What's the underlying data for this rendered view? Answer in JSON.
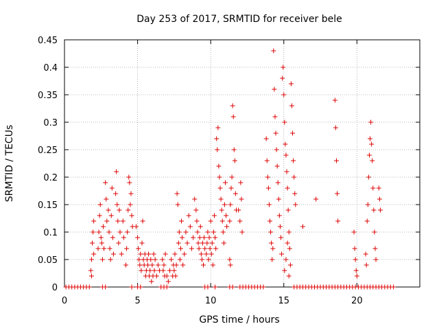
{
  "chart_data": {
    "type": "scatter",
    "title": "Day 253 of 2017, SRMTID for receiver bele",
    "xlabel": "GPS time / hours",
    "ylabel": "SRMTID / TECUs",
    "xlim": [
      0,
      24.3
    ],
    "ylim": [
      0,
      0.45
    ],
    "grid": true,
    "marker": "+",
    "marker_color": "#dd0000",
    "x_ticks": [
      0,
      5,
      10,
      15,
      20
    ],
    "x_tick_labels": [
      "0",
      "5",
      "10",
      "15",
      "20"
    ],
    "y_ticks": [
      0,
      0.05,
      0.1,
      0.15,
      0.2,
      0.25,
      0.3,
      0.35,
      0.4,
      0.45
    ],
    "y_tick_labels": [
      "0",
      "0.05",
      "0.1",
      "0.15",
      "0.2",
      "0.25",
      "0.3",
      "0.35",
      "0.4",
      "0.45"
    ],
    "series": [
      {
        "name": "SRMTID",
        "points": [
          [
            0.1,
            0
          ],
          [
            0.3,
            0
          ],
          [
            0.5,
            0
          ],
          [
            0.7,
            0
          ],
          [
            0.9,
            0
          ],
          [
            1.1,
            0
          ],
          [
            1.3,
            0
          ],
          [
            1.5,
            0
          ],
          [
            1.7,
            0
          ],
          [
            2.6,
            0
          ],
          [
            2.8,
            0
          ],
          [
            4.6,
            0
          ],
          [
            5.0,
            0
          ],
          [
            5.2,
            0
          ],
          [
            6.6,
            0
          ],
          [
            6.8,
            0
          ],
          [
            7.0,
            0
          ],
          [
            9.6,
            0
          ],
          [
            9.8,
            0
          ],
          [
            10.3,
            0
          ],
          [
            11.3,
            0
          ],
          [
            11.5,
            0
          ],
          [
            12.0,
            0
          ],
          [
            12.2,
            0
          ],
          [
            12.4,
            0
          ],
          [
            12.6,
            0
          ],
          [
            12.8,
            0
          ],
          [
            13.0,
            0
          ],
          [
            13.2,
            0
          ],
          [
            13.4,
            0
          ],
          [
            13.6,
            0
          ],
          [
            15.7,
            0
          ],
          [
            15.9,
            0
          ],
          [
            16.1,
            0
          ],
          [
            16.3,
            0
          ],
          [
            16.5,
            0
          ],
          [
            16.7,
            0
          ],
          [
            16.9,
            0
          ],
          [
            17.1,
            0
          ],
          [
            17.3,
            0
          ],
          [
            17.5,
            0
          ],
          [
            17.7,
            0
          ],
          [
            17.9,
            0
          ],
          [
            18.1,
            0
          ],
          [
            18.3,
            0
          ],
          [
            18.5,
            0
          ],
          [
            18.7,
            0
          ],
          [
            18.9,
            0
          ],
          [
            19.1,
            0
          ],
          [
            19.3,
            0
          ],
          [
            19.5,
            0
          ],
          [
            19.7,
            0
          ],
          [
            19.9,
            0
          ],
          [
            20.1,
            0
          ],
          [
            20.3,
            0
          ],
          [
            20.5,
            0
          ],
          [
            20.7,
            0
          ],
          [
            20.9,
            0
          ],
          [
            21.1,
            0
          ],
          [
            21.3,
            0
          ],
          [
            21.5,
            0
          ],
          [
            21.7,
            0
          ],
          [
            21.9,
            0
          ],
          [
            22.1,
            0
          ],
          [
            22.3,
            0
          ],
          [
            22.5,
            0
          ],
          [
            1.8,
            0.03
          ],
          [
            1.85,
            0.05
          ],
          [
            1.9,
            0.08
          ],
          [
            1.95,
            0.1
          ],
          [
            2.0,
            0.06
          ],
          [
            2.0,
            0.12
          ],
          [
            1.85,
            0.02
          ],
          [
            2.3,
            0.07
          ],
          [
            2.35,
            0.1
          ],
          [
            2.4,
            0.13
          ],
          [
            2.45,
            0.15
          ],
          [
            2.5,
            0.09
          ],
          [
            2.55,
            0.08
          ],
          [
            2.6,
            0.05
          ],
          [
            2.65,
            0.11
          ],
          [
            2.7,
            0.07
          ],
          [
            2.8,
            0.19
          ],
          [
            2.85,
            0.16
          ],
          [
            2.9,
            0.12
          ],
          [
            3.0,
            0.14
          ],
          [
            3.05,
            0.1
          ],
          [
            3.1,
            0.07
          ],
          [
            3.15,
            0.05
          ],
          [
            3.2,
            0.13
          ],
          [
            3.25,
            0.18
          ],
          [
            3.3,
            0.09
          ],
          [
            3.35,
            0.06
          ],
          [
            3.5,
            0.17
          ],
          [
            3.55,
            0.21
          ],
          [
            3.6,
            0.15
          ],
          [
            3.65,
            0.12
          ],
          [
            3.7,
            0.08
          ],
          [
            3.75,
            0.14
          ],
          [
            3.8,
            0.1
          ],
          [
            3.9,
            0.06
          ],
          [
            4.0,
            0.12
          ],
          [
            4.05,
            0.09
          ],
          [
            4.2,
            0.04
          ],
          [
            4.25,
            0.07
          ],
          [
            4.3,
            0.1
          ],
          [
            4.35,
            0.14
          ],
          [
            4.4,
            0.2
          ],
          [
            4.45,
            0.19
          ],
          [
            4.5,
            0.15
          ],
          [
            4.55,
            0.17
          ],
          [
            4.6,
            0.13
          ],
          [
            4.65,
            0.11
          ],
          [
            4.9,
            0.11
          ],
          [
            5.0,
            0.09
          ],
          [
            5.05,
            0.07
          ],
          [
            5.1,
            0.05
          ],
          [
            5.15,
            0.04
          ],
          [
            5.2,
            0.06
          ],
          [
            5.25,
            0.03
          ],
          [
            5.3,
            0.08
          ],
          [
            5.35,
            0.12
          ],
          [
            5.4,
            0.05
          ],
          [
            5.45,
            0.04
          ],
          [
            5.5,
            0.06
          ],
          [
            5.55,
            0.02
          ],
          [
            5.6,
            0.03
          ],
          [
            5.65,
            0.05
          ],
          [
            5.7,
            0.04
          ],
          [
            5.75,
            0.06
          ],
          [
            5.8,
            0.02
          ],
          [
            5.85,
            0.03
          ],
          [
            5.9,
            0.05
          ],
          [
            5.95,
            0.01
          ],
          [
            6.0,
            0.04
          ],
          [
            6.05,
            0.02
          ],
          [
            6.1,
            0.06
          ],
          [
            6.15,
            0.03
          ],
          [
            6.2,
            0.05
          ],
          [
            6.3,
            0.02
          ],
          [
            6.4,
            0.04
          ],
          [
            6.5,
            0.03
          ],
          [
            6.7,
            0.05
          ],
          [
            6.75,
            0.03
          ],
          [
            6.8,
            0.04
          ],
          [
            6.85,
            0.02
          ],
          [
            6.9,
            0.06
          ],
          [
            7.0,
            0.02
          ],
          [
            7.1,
            0.01
          ],
          [
            7.2,
            0.03
          ],
          [
            7.3,
            0.05
          ],
          [
            7.4,
            0.02
          ],
          [
            7.45,
            0.04
          ],
          [
            7.5,
            0.03
          ],
          [
            7.55,
            0.06
          ],
          [
            7.6,
            0.02
          ],
          [
            7.65,
            0.04
          ],
          [
            7.7,
            0.17
          ],
          [
            7.75,
            0.15
          ],
          [
            7.8,
            0.08
          ],
          [
            7.85,
            0.1
          ],
          [
            7.9,
            0.05
          ],
          [
            7.95,
            0.07
          ],
          [
            8.0,
            0.12
          ],
          [
            8.05,
            0.09
          ],
          [
            8.1,
            0.04
          ],
          [
            8.2,
            0.06
          ],
          [
            8.3,
            0.1
          ],
          [
            8.4,
            0.08
          ],
          [
            8.5,
            0.13
          ],
          [
            8.6,
            0.11
          ],
          [
            8.7,
            0.07
          ],
          [
            8.8,
            0.09
          ],
          [
            8.9,
            0.16
          ],
          [
            9.0,
            0.14
          ],
          [
            9.05,
            0.12
          ],
          [
            9.1,
            0.1
          ],
          [
            9.15,
            0.08
          ],
          [
            9.2,
            0.07
          ],
          [
            9.25,
            0.09
          ],
          [
            9.3,
            0.11
          ],
          [
            9.35,
            0.06
          ],
          [
            9.4,
            0.05
          ],
          [
            9.45,
            0.08
          ],
          [
            9.5,
            0.04
          ],
          [
            9.55,
            0.09
          ],
          [
            9.6,
            0.07
          ],
          [
            9.7,
            0.06
          ],
          [
            9.75,
            0.08
          ],
          [
            9.8,
            0.1
          ],
          [
            9.85,
            0.05
          ],
          [
            9.9,
            0.09
          ],
          [
            9.95,
            0.07
          ],
          [
            10.0,
            0.12
          ],
          [
            10.05,
            0.06
          ],
          [
            10.1,
            0.08
          ],
          [
            10.15,
            0.04
          ],
          [
            10.2,
            0.1
          ],
          [
            10.25,
            0.13
          ],
          [
            10.3,
            0.09
          ],
          [
            10.35,
            0.07
          ],
          [
            10.4,
            0.27
          ],
          [
            10.45,
            0.25
          ],
          [
            10.5,
            0.29
          ],
          [
            10.55,
            0.22
          ],
          [
            10.6,
            0.2
          ],
          [
            10.65,
            0.18
          ],
          [
            10.7,
            0.16
          ],
          [
            10.75,
            0.14
          ],
          [
            10.8,
            0.12
          ],
          [
            10.85,
            0.1
          ],
          [
            10.9,
            0.08
          ],
          [
            10.95,
            0.15
          ],
          [
            11.0,
            0.19
          ],
          [
            11.05,
            0.13
          ],
          [
            11.1,
            0.11
          ],
          [
            11.3,
            0.12
          ],
          [
            11.35,
            0.15
          ],
          [
            11.4,
            0.18
          ],
          [
            11.45,
            0.2
          ],
          [
            11.5,
            0.33
          ],
          [
            11.55,
            0.31
          ],
          [
            11.6,
            0.25
          ],
          [
            11.65,
            0.23
          ],
          [
            11.7,
            0.17
          ],
          [
            11.75,
            0.14
          ],
          [
            11.3,
            0.05
          ],
          [
            11.35,
            0.04
          ],
          [
            11.9,
            0.14
          ],
          [
            12.0,
            0.12
          ],
          [
            12.05,
            0.19
          ],
          [
            12.1,
            0.16
          ],
          [
            12.15,
            0.1
          ],
          [
            13.8,
            0.27
          ],
          [
            13.85,
            0.23
          ],
          [
            13.9,
            0.2
          ],
          [
            13.95,
            0.18
          ],
          [
            14.0,
            0.15
          ],
          [
            14.05,
            0.12
          ],
          [
            14.1,
            0.1
          ],
          [
            14.15,
            0.08
          ],
          [
            14.2,
            0.05
          ],
          [
            14.25,
            0.07
          ],
          [
            14.3,
            0.43
          ],
          [
            14.35,
            0.36
          ],
          [
            14.4,
            0.31
          ],
          [
            14.45,
            0.28
          ],
          [
            14.5,
            0.25
          ],
          [
            14.55,
            0.22
          ],
          [
            14.6,
            0.19
          ],
          [
            14.65,
            0.16
          ],
          [
            14.7,
            0.13
          ],
          [
            14.75,
            0.11
          ],
          [
            14.8,
            0.09
          ],
          [
            14.85,
            0.06
          ],
          [
            14.9,
            0.38
          ],
          [
            14.95,
            0.4
          ],
          [
            15.0,
            0.35
          ],
          [
            15.05,
            0.3
          ],
          [
            15.1,
            0.26
          ],
          [
            15.15,
            0.24
          ],
          [
            15.2,
            0.21
          ],
          [
            15.25,
            0.18
          ],
          [
            15.3,
            0.14
          ],
          [
            15.35,
            0.1
          ],
          [
            15.4,
            0.07
          ],
          [
            15.45,
            0.04
          ],
          [
            15.5,
            0.37
          ],
          [
            15.55,
            0.33
          ],
          [
            15.6,
            0.28
          ],
          [
            15.65,
            0.23
          ],
          [
            15.7,
            0.2
          ],
          [
            15.75,
            0.17
          ],
          [
            15.8,
            0.15
          ],
          [
            15.05,
            0.03
          ],
          [
            15.15,
            0.05
          ],
          [
            15.25,
            0.08
          ],
          [
            15.35,
            0.02
          ],
          [
            16.3,
            0.11
          ],
          [
            17.2,
            0.16
          ],
          [
            18.5,
            0.34
          ],
          [
            18.55,
            0.29
          ],
          [
            18.6,
            0.23
          ],
          [
            18.65,
            0.17
          ],
          [
            18.7,
            0.12
          ],
          [
            19.8,
            0.1
          ],
          [
            19.85,
            0.07
          ],
          [
            19.9,
            0.05
          ],
          [
            19.95,
            0.03
          ],
          [
            20.0,
            0.02
          ],
          [
            20.6,
            0.06
          ],
          [
            20.65,
            0.04
          ],
          [
            20.7,
            0.12
          ],
          [
            20.75,
            0.15
          ],
          [
            20.8,
            0.2
          ],
          [
            20.85,
            0.24
          ],
          [
            20.9,
            0.27
          ],
          [
            20.95,
            0.3
          ],
          [
            21.0,
            0.26
          ],
          [
            21.05,
            0.23
          ],
          [
            21.1,
            0.18
          ],
          [
            21.15,
            0.14
          ],
          [
            21.2,
            0.1
          ],
          [
            21.25,
            0.07
          ],
          [
            21.3,
            0.05
          ],
          [
            21.5,
            0.18
          ],
          [
            21.55,
            0.16
          ],
          [
            21.6,
            0.14
          ]
        ]
      }
    ]
  }
}
